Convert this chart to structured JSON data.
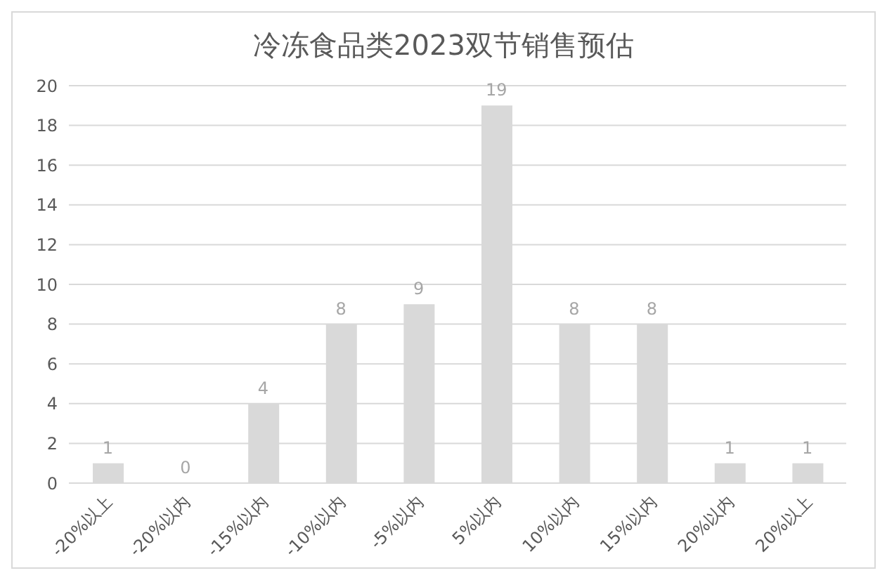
{
  "chart_data": {
    "type": "bar",
    "title": "冷冻食品类2023双节销售预估",
    "categories": [
      "-20%以上",
      "-20%以内",
      "-15%以内",
      "-10%以内",
      "-5%以内",
      "5%以内",
      "10%以内",
      "15%以内",
      "20%以内",
      "20%以上"
    ],
    "values": [
      1,
      0,
      4,
      8,
      9,
      19,
      8,
      8,
      1,
      1
    ],
    "color": "#d9d9d9",
    "ylim": [
      0,
      20
    ],
    "yticks": [
      0,
      2,
      4,
      6,
      8,
      10,
      12,
      14,
      16,
      18,
      20
    ],
    "grid": "y",
    "data_labels": true
  }
}
